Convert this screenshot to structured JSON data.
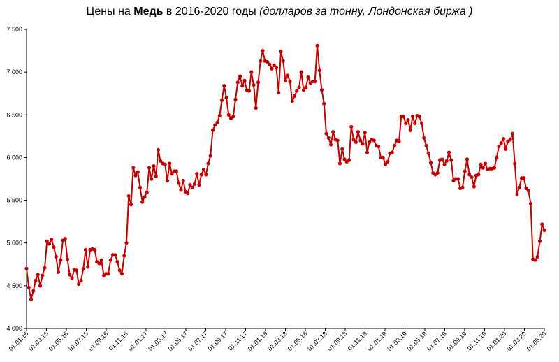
{
  "chart_data": {
    "type": "line",
    "title_parts": {
      "prefix": "Цены  на ",
      "metal": "Медь",
      "middle": " в 2016-2020 годы ",
      "unit": "(долларов за тонну, Лондонская биржа )"
    },
    "y_ticks": [
      "4 000",
      "4 500",
      "5 000",
      "5 500",
      "6 000",
      "6 500",
      "7 000",
      "7 500"
    ],
    "ylim": [
      4000,
      7500
    ],
    "x_ticks": [
      "01.01.16",
      "01.03.16",
      "01.05.16",
      "01.07.16",
      "01.09.16",
      "01.11.16",
      "01.01.17",
      "01.03.17",
      "01.05.17",
      "01.07.17",
      "01.09.17",
      "01.11.17",
      "01.01.18",
      "01.03.18",
      "01.05.18",
      "01.07.18",
      "01.09.18",
      "01.11.18",
      "01.01.19",
      "01.03.19",
      "01.05.19",
      "01.07.19",
      "01.09.19",
      "01.11.19",
      "01.01.20",
      "01.03.20",
      "01.05.20"
    ],
    "grid": false,
    "line_color": "#c00000",
    "series": [
      {
        "values": [
          4700,
          4480,
          4340,
          4440,
          4560,
          4630,
          4500,
          4620,
          4710,
          5020,
          4990,
          5040,
          4950,
          4840,
          4660,
          4800,
          5030,
          5050,
          4810,
          4630,
          4590,
          4690,
          4680,
          4520,
          4560,
          4700,
          4920,
          4720,
          4920,
          4930,
          4920,
          4780,
          4760,
          4800,
          4620,
          4640,
          4640,
          4800,
          4860,
          4860,
          4780,
          4680,
          4640,
          4850,
          5000,
          5550,
          5450,
          5880,
          5790,
          5830,
          5650,
          5480,
          5540,
          5590,
          5880,
          5750,
          5900,
          5780,
          6090,
          5960,
          5930,
          5920,
          5730,
          5930,
          5810,
          5840,
          5840,
          5700,
          5620,
          5730,
          5600,
          5580,
          5680,
          5650,
          5690,
          5810,
          5680,
          5800,
          5860,
          5800,
          5930,
          6020,
          6320,
          6380,
          6410,
          6490,
          6670,
          6840,
          6700,
          6500,
          6460,
          6480,
          6680,
          6880,
          6950,
          6840,
          6900,
          6790,
          6780,
          7000,
          6850,
          6580,
          6880,
          7130,
          7250,
          7130,
          7120,
          7090,
          7040,
          7080,
          7050,
          6760,
          7240,
          7130,
          6900,
          6960,
          6890,
          6660,
          6720,
          6780,
          6820,
          7000,
          6790,
          6820,
          6940,
          6870,
          6890,
          6890,
          7310,
          7020,
          6790,
          6630,
          6280,
          6230,
          6150,
          6300,
          6210,
          6200,
          5930,
          6100,
          5980,
          5950,
          5970,
          6360,
          6210,
          6180,
          6300,
          6200,
          6160,
          6290,
          6060,
          6180,
          6210,
          6200,
          6140,
          6130,
          6000,
          6000,
          5920,
          5950,
          6050,
          6060,
          6140,
          6200,
          6190,
          6480,
          6480,
          6400,
          6440,
          6320,
          6480,
          6400,
          6490,
          6480,
          6400,
          6230,
          6140,
          6050,
          5940,
          5820,
          5800,
          5820,
          5970,
          5980,
          5920,
          5960,
          6060,
          5970,
          5730,
          5750,
          5750,
          5640,
          5650,
          5840,
          5980,
          5800,
          5770,
          5660,
          5790,
          5800,
          5920,
          5880,
          5930,
          5860,
          5870,
          5870,
          5880,
          6000,
          6130,
          6170,
          6220,
          6100,
          6190,
          6210,
          6280,
          5930,
          5570,
          5650,
          5760,
          5760,
          5640,
          5610,
          5460,
          4810,
          4800,
          4840,
          5020,
          5220,
          5150
        ]
      }
    ]
  }
}
